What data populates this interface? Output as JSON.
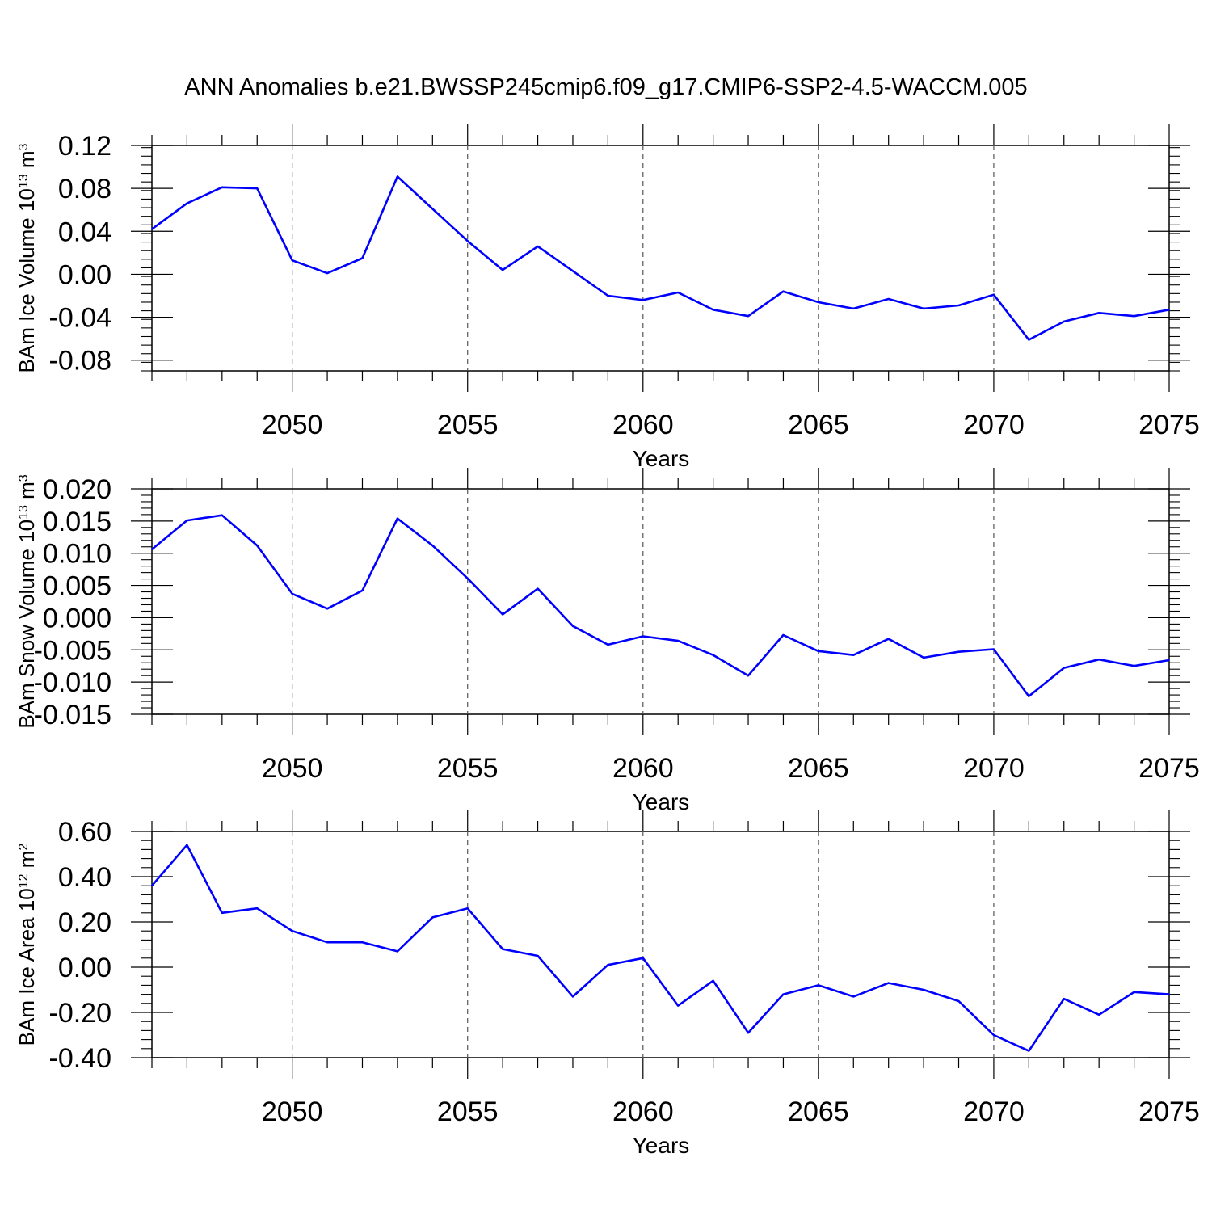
{
  "title": "ANN Anomalies b.e21.BWSSP245cmip6.f09_g17.CMIP6-SSP2-4.5-WACCM.005",
  "colors": {
    "line": "#0000ff",
    "axis": "#000000",
    "grid": "#555555"
  },
  "chart_data": [
    {
      "type": "line",
      "ylabel": {
        "main": "BAm Ice Volume 10",
        "sup": "13",
        "unit": " m",
        "unit_sup": "3"
      },
      "xlabel": "Years",
      "xlim": [
        2046,
        2075
      ],
      "ylim": [
        -0.09,
        0.12
      ],
      "yticks": [
        -0.08,
        -0.04,
        0.0,
        0.04,
        0.08,
        0.12
      ],
      "ytick_labels": [
        "-0.08",
        "-0.04",
        "0.00",
        "0.04",
        "0.08",
        "0.12"
      ],
      "xticks": [
        2050,
        2055,
        2060,
        2065,
        2070,
        2075
      ],
      "xtick_labels": [
        "2050",
        "2055",
        "2060",
        "2065",
        "2070",
        "2075"
      ],
      "x": [
        2046,
        2047,
        2048,
        2049,
        2050,
        2051,
        2052,
        2053,
        2054,
        2055,
        2056,
        2057,
        2058,
        2059,
        2060,
        2061,
        2062,
        2063,
        2064,
        2065,
        2066,
        2067,
        2068,
        2069,
        2070,
        2071,
        2072,
        2073,
        2074,
        2075
      ],
      "values": [
        0.042,
        0.066,
        0.081,
        0.08,
        0.013,
        0.001,
        0.015,
        0.091,
        0.061,
        0.031,
        0.004,
        0.026,
        0.003,
        -0.02,
        -0.024,
        -0.017,
        -0.033,
        -0.039,
        -0.016,
        -0.026,
        -0.032,
        -0.023,
        -0.032,
        -0.029,
        -0.019,
        -0.061,
        -0.044,
        -0.036,
        -0.039,
        -0.033
      ]
    },
    {
      "type": "line",
      "ylabel": {
        "main": "BAm Snow Volume 10",
        "sup": "13",
        "unit": " m",
        "unit_sup": "3"
      },
      "xlabel": "Years",
      "xlim": [
        2046,
        2075
      ],
      "ylim": [
        -0.015,
        0.02
      ],
      "yticks": [
        -0.015,
        -0.01,
        -0.005,
        0.0,
        0.005,
        0.01,
        0.015,
        0.02
      ],
      "ytick_labels": [
        "-0.015",
        "-0.010",
        "-0.005",
        "0.000",
        "0.005",
        "0.010",
        "0.015",
        "0.020"
      ],
      "xticks": [
        2050,
        2055,
        2060,
        2065,
        2070,
        2075
      ],
      "xtick_labels": [
        "2050",
        "2055",
        "2060",
        "2065",
        "2070",
        "2075"
      ],
      "x": [
        2046,
        2047,
        2048,
        2049,
        2050,
        2051,
        2052,
        2053,
        2054,
        2055,
        2056,
        2057,
        2058,
        2059,
        2060,
        2061,
        2062,
        2063,
        2064,
        2065,
        2066,
        2067,
        2068,
        2069,
        2070,
        2071,
        2072,
        2073,
        2074,
        2075
      ],
      "values": [
        0.0106,
        0.0151,
        0.0159,
        0.0112,
        0.0037,
        0.0014,
        0.0042,
        0.0154,
        0.0112,
        0.0061,
        0.0005,
        0.0045,
        -0.0013,
        -0.0042,
        -0.0029,
        -0.0036,
        -0.0058,
        -0.009,
        -0.0027,
        -0.0052,
        -0.0058,
        -0.0033,
        -0.0062,
        -0.0053,
        -0.0049,
        -0.0122,
        -0.0078,
        -0.0065,
        -0.0075,
        -0.0066
      ]
    },
    {
      "type": "line",
      "ylabel": {
        "main": "BAm Ice Area 10",
        "sup": "12",
        "unit": " m",
        "unit_sup": "2"
      },
      "xlabel": "Years",
      "xlim": [
        2046,
        2075
      ],
      "ylim": [
        -0.4,
        0.6
      ],
      "yticks": [
        -0.4,
        -0.2,
        0.0,
        0.2,
        0.4,
        0.6
      ],
      "ytick_labels": [
        "-0.40",
        "-0.20",
        "0.00",
        "0.20",
        "0.40",
        "0.60"
      ],
      "xticks": [
        2050,
        2055,
        2060,
        2065,
        2070,
        2075
      ],
      "xtick_labels": [
        "2050",
        "2055",
        "2060",
        "2065",
        "2070",
        "2075"
      ],
      "x": [
        2046,
        2047,
        2048,
        2049,
        2050,
        2051,
        2052,
        2053,
        2054,
        2055,
        2056,
        2057,
        2058,
        2059,
        2060,
        2061,
        2062,
        2063,
        2064,
        2065,
        2066,
        2067,
        2068,
        2069,
        2070,
        2071,
        2072,
        2073,
        2074,
        2075
      ],
      "values": [
        0.36,
        0.54,
        0.24,
        0.26,
        0.16,
        0.11,
        0.11,
        0.07,
        0.22,
        0.26,
        0.08,
        0.05,
        -0.13,
        0.01,
        0.04,
        -0.17,
        -0.06,
        -0.29,
        -0.12,
        -0.08,
        -0.13,
        -0.07,
        -0.1,
        -0.15,
        -0.3,
        -0.37,
        -0.14,
        -0.21,
        -0.11,
        -0.12
      ]
    }
  ]
}
